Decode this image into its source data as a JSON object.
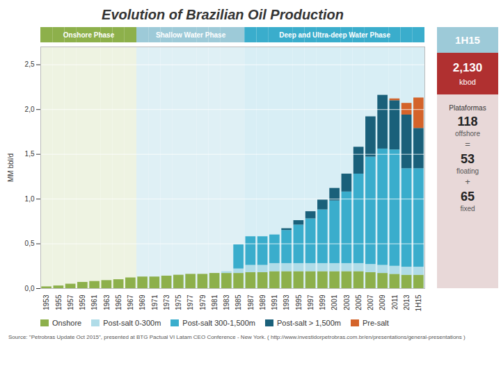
{
  "chart_data": {
    "type": "bar",
    "stacked": true,
    "title": "Evolution of Brazilian Oil Production",
    "y_label": "MM bbl/d",
    "categories": [
      "1953",
      "1955",
      "1957",
      "1959",
      "1961",
      "1963",
      "1965",
      "1967",
      "1969",
      "1971",
      "1973",
      "1975",
      "1977",
      "1979",
      "1981",
      "1983",
      "1985",
      "1987",
      "1989",
      "1991",
      "1993",
      "1995",
      "1997",
      "1999",
      "2001",
      "2003",
      "2005",
      "2007",
      "2009",
      "2011",
      "2013",
      "1H15"
    ],
    "series": [
      {
        "name": "Onshore",
        "color": "#8db04b",
        "values": [
          0.02,
          0.03,
          0.05,
          0.07,
          0.08,
          0.09,
          0.1,
          0.12,
          0.13,
          0.13,
          0.14,
          0.15,
          0.16,
          0.16,
          0.17,
          0.17,
          0.17,
          0.18,
          0.18,
          0.19,
          0.19,
          0.19,
          0.19,
          0.19,
          0.19,
          0.19,
          0.19,
          0.18,
          0.17,
          0.16,
          0.15,
          0.15
        ]
      },
      {
        "name": "Post-salt 0-300m",
        "color": "#b0dce8",
        "values": [
          0.0,
          0.0,
          0.0,
          0.0,
          0.0,
          0.0,
          0.0,
          0.0,
          0.0,
          0.0,
          0.0,
          0.0,
          0.0,
          0.0,
          0.0,
          0.02,
          0.05,
          0.08,
          0.08,
          0.09,
          0.09,
          0.09,
          0.09,
          0.09,
          0.09,
          0.09,
          0.09,
          0.09,
          0.09,
          0.09,
          0.09,
          0.09
        ]
      },
      {
        "name": "Post-salt 300-1,500m",
        "color": "#3aadcc",
        "values": [
          0.0,
          0.0,
          0.0,
          0.0,
          0.0,
          0.0,
          0.0,
          0.0,
          0.0,
          0.0,
          0.0,
          0.0,
          0.0,
          0.0,
          0.0,
          0.0,
          0.27,
          0.32,
          0.32,
          0.32,
          0.37,
          0.43,
          0.5,
          0.6,
          0.7,
          0.8,
          1.0,
          1.2,
          1.3,
          1.3,
          1.1,
          1.1
        ]
      },
      {
        "name": "Post-salt > 1,500m",
        "color": "#1a607a",
        "values": [
          0.0,
          0.0,
          0.0,
          0.0,
          0.0,
          0.0,
          0.0,
          0.0,
          0.0,
          0.0,
          0.0,
          0.0,
          0.0,
          0.0,
          0.0,
          0.0,
          0.0,
          0.0,
          0.0,
          0.0,
          0.02,
          0.05,
          0.08,
          0.11,
          0.14,
          0.2,
          0.3,
          0.45,
          0.6,
          0.55,
          0.6,
          0.45
        ]
      },
      {
        "name": "Pre-salt",
        "color": "#d4632a",
        "values": [
          0.0,
          0.0,
          0.0,
          0.0,
          0.0,
          0.0,
          0.0,
          0.0,
          0.0,
          0.0,
          0.0,
          0.0,
          0.0,
          0.0,
          0.0,
          0.0,
          0.0,
          0.0,
          0.0,
          0.0,
          0.0,
          0.0,
          0.0,
          0.0,
          0.0,
          0.0,
          0.0,
          0.0,
          0.0,
          0.02,
          0.13,
          0.34
        ]
      }
    ],
    "ylim": [
      0,
      2.7
    ],
    "yticks": [
      {
        "value": 0,
        "label": "0,0"
      },
      {
        "value": 0.5,
        "label": "0,5"
      },
      {
        "value": 1,
        "label": "1,0"
      },
      {
        "value": 1.5,
        "label": "1,5"
      },
      {
        "value": 2,
        "label": "2,0"
      },
      {
        "value": 2.5,
        "label": "2,5"
      }
    ],
    "grid": true,
    "legend": "bottom",
    "phases": [
      {
        "text": "Onshore Phase",
        "from": "1953",
        "to": "1967",
        "color": "#8db04b",
        "background": "#eef3e2"
      },
      {
        "text": "Shallow Water Phase",
        "from": "1969",
        "to": "1985",
        "color": "#9dcad8",
        "background": "#dff0f5"
      },
      {
        "text": "Deep and Ultra-deep Water Phase",
        "from": "1987",
        "to": "1H15",
        "color": "#3aadcc",
        "background": "#d8eef5"
      }
    ],
    "sidebar": {
      "background": "#e8d8d8",
      "header": {
        "text": "1H15",
        "color": "#9dcad8"
      },
      "highlight": {
        "text": "2,130",
        "unit": "kbod",
        "color": "#b03030"
      },
      "lines": [
        "Plataformas",
        "118",
        "offshore",
        "=",
        "53",
        "floating",
        "+",
        "65",
        "fixed"
      ]
    },
    "source": "Source: \"Petrobras Update Oct 2015\", presented at BTG Pactual VI Latam CEO Conference - New York. ( http://www.investidorpetrobras.com.br/en/presentations/general-presentations )"
  }
}
